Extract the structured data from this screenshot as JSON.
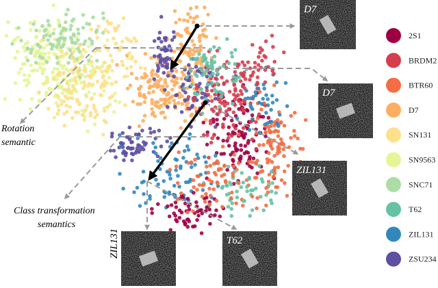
{
  "legend": {
    "items": [
      {
        "label": "2S1",
        "color": "#9e0142"
      },
      {
        "label": "BRDM2",
        "color": "#d53e4f"
      },
      {
        "label": "BTR60",
        "color": "#f46d43"
      },
      {
        "label": "D7",
        "color": "#fdae61"
      },
      {
        "label": "SN131",
        "color": "#fee08b"
      },
      {
        "label": "SN9563",
        "color": "#e6f598"
      },
      {
        "label": "SNC71",
        "color": "#abdda4"
      },
      {
        "label": "T62",
        "color": "#66c2a5"
      },
      {
        "label": "ZIL131",
        "color": "#3288bd"
      },
      {
        "label": "ZSU234",
        "color": "#5e4fa2"
      }
    ]
  },
  "annotations": {
    "rotation": [
      "Rotation",
      "semantic"
    ],
    "class": [
      "Class transformation",
      "semantics"
    ]
  },
  "images": [
    {
      "label": "D7"
    },
    {
      "label": "D7"
    },
    {
      "label": "ZIL131"
    },
    {
      "label": "ZIL131"
    },
    {
      "label": "T62"
    }
  ]
}
